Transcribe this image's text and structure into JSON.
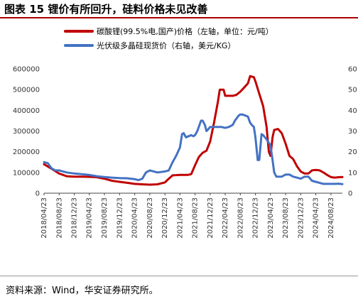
{
  "page": {
    "title": "图表 15  锂价有所回升，硅料价格未见改善",
    "source": "资料来源：Wind，华安证券研究所。"
  },
  "chart_data": {
    "type": "line",
    "x_labels": [
      "2018/04/23",
      "2018/08/23",
      "2018/12/23",
      "2019/04/23",
      "2019/08/23",
      "2019/12/23",
      "2020/04/23",
      "2020/08/23",
      "2020/12/23",
      "2021/04/23",
      "2021/08/23",
      "2021/12/23",
      "2022/04/23",
      "2022/08/23",
      "2022/12/23",
      "2023/04/23",
      "2023/08/23",
      "2023/12/23",
      "2024/04/23",
      "2024/08/23"
    ],
    "x_range": [
      "2018/04/23",
      "2024/11/23"
    ],
    "left_axis": {
      "min": 0,
      "max": 600000,
      "ticks": [
        0,
        100000,
        200000,
        300000,
        400000,
        500000,
        600000
      ]
    },
    "right_axis": {
      "min": 0,
      "max": 60,
      "ticks": [
        0,
        10,
        20,
        30,
        40,
        50,
        60
      ]
    },
    "grid": false,
    "legend_position": "top",
    "series": [
      {
        "name": "碳酸锂(99.5%电,国产)价格（左轴，单位：元/吨）",
        "axis": "left",
        "color": "#c00000",
        "points": [
          [
            "2018/04/23",
            140000
          ],
          [
            "2018/06/23",
            118000
          ],
          [
            "2018/08/23",
            95000
          ],
          [
            "2018/10/23",
            82000
          ],
          [
            "2018/12/23",
            80000
          ],
          [
            "2019/02/23",
            80000
          ],
          [
            "2019/04/23",
            79000
          ],
          [
            "2019/06/23",
            77000
          ],
          [
            "2019/08/23",
            70000
          ],
          [
            "2019/10/23",
            60000
          ],
          [
            "2019/12/23",
            55000
          ],
          [
            "2020/02/23",
            50000
          ],
          [
            "2020/04/23",
            45000
          ],
          [
            "2020/06/23",
            43000
          ],
          [
            "2020/08/23",
            41000
          ],
          [
            "2020/10/23",
            43000
          ],
          [
            "2020/12/23",
            52000
          ],
          [
            "2021/01/23",
            70000
          ],
          [
            "2021/02/23",
            86000
          ],
          [
            "2021/04/23",
            88000
          ],
          [
            "2021/06/23",
            88000
          ],
          [
            "2021/07/23",
            92000
          ],
          [
            "2021/08/23",
            135000
          ],
          [
            "2021/09/23",
            175000
          ],
          [
            "2021/10/23",
            195000
          ],
          [
            "2021/11/23",
            205000
          ],
          [
            "2021/12/23",
            250000
          ],
          [
            "2022/01/23",
            340000
          ],
          [
            "2022/02/23",
            440000
          ],
          [
            "2022/03/10",
            500000
          ],
          [
            "2022/04/10",
            500000
          ],
          [
            "2022/04/23",
            470000
          ],
          [
            "2022/06/23",
            470000
          ],
          [
            "2022/07/23",
            475000
          ],
          [
            "2022/08/23",
            490000
          ],
          [
            "2022/09/23",
            510000
          ],
          [
            "2022/10/23",
            530000
          ],
          [
            "2022/11/10",
            565000
          ],
          [
            "2022/12/10",
            560000
          ],
          [
            "2022/12/23",
            540000
          ],
          [
            "2023/01/23",
            480000
          ],
          [
            "2023/02/23",
            420000
          ],
          [
            "2023/03/23",
            320000
          ],
          [
            "2023/04/10",
            200000
          ],
          [
            "2023/04/23",
            180000
          ],
          [
            "2023/05/10",
            270000
          ],
          [
            "2023/05/23",
            305000
          ],
          [
            "2023/06/23",
            310000
          ],
          [
            "2023/07/23",
            290000
          ],
          [
            "2023/08/23",
            240000
          ],
          [
            "2023/09/23",
            180000
          ],
          [
            "2023/10/23",
            165000
          ],
          [
            "2023/11/23",
            130000
          ],
          [
            "2023/12/23",
            105000
          ],
          [
            "2024/01/23",
            95000
          ],
          [
            "2024/02/23",
            95000
          ],
          [
            "2024/03/23",
            110000
          ],
          [
            "2024/04/23",
            112000
          ],
          [
            "2024/05/23",
            110000
          ],
          [
            "2024/06/23",
            100000
          ],
          [
            "2024/07/23",
            88000
          ],
          [
            "2024/08/23",
            78000
          ],
          [
            "2024/09/23",
            75000
          ],
          [
            "2024/10/23",
            77000
          ],
          [
            "2024/11/23",
            78000
          ]
        ]
      },
      {
        "name": "光伏级多晶硅现货价（右轴，美元/KG）",
        "axis": "right",
        "color": "#4472c4",
        "points": [
          [
            "2018/04/23",
            15
          ],
          [
            "2018/05/23",
            14.5
          ],
          [
            "2018/06/23",
            12
          ],
          [
            "2018/07/23",
            11
          ],
          [
            "2018/08/23",
            11
          ],
          [
            "2018/10/23",
            10
          ],
          [
            "2018/12/23",
            9.5
          ],
          [
            "2019/02/23",
            9.2
          ],
          [
            "2019/04/23",
            8.8
          ],
          [
            "2019/06/23",
            8.2
          ],
          [
            "2019/08/23",
            7.8
          ],
          [
            "2019/10/23",
            7.5
          ],
          [
            "2019/12/23",
            7.3
          ],
          [
            "2020/02/23",
            7.2
          ],
          [
            "2020/04/23",
            6.8
          ],
          [
            "2020/05/23",
            6.3
          ],
          [
            "2020/06/23",
            7
          ],
          [
            "2020/07/23",
            10
          ],
          [
            "2020/08/23",
            11
          ],
          [
            "2020/10/23",
            10
          ],
          [
            "2020/12/23",
            10.5
          ],
          [
            "2021/01/23",
            11
          ],
          [
            "2021/02/23",
            15
          ],
          [
            "2021/03/23",
            18
          ],
          [
            "2021/04/23",
            22
          ],
          [
            "2021/05/10",
            28.5
          ],
          [
            "2021/05/23",
            29
          ],
          [
            "2021/06/10",
            27
          ],
          [
            "2021/07/23",
            28
          ],
          [
            "2021/08/10",
            27.5
          ],
          [
            "2021/08/23",
            28
          ],
          [
            "2021/09/10",
            30
          ],
          [
            "2021/10/10",
            35
          ],
          [
            "2021/10/23",
            35
          ],
          [
            "2021/11/10",
            33
          ],
          [
            "2021/11/23",
            30
          ],
          [
            "2021/12/10",
            31
          ],
          [
            "2021/12/23",
            32
          ],
          [
            "2022/02/23",
            32
          ],
          [
            "2022/03/23",
            32
          ],
          [
            "2022/04/23",
            31.5
          ],
          [
            "2022/05/23",
            32
          ],
          [
            "2022/06/23",
            33
          ],
          [
            "2022/07/10",
            35
          ],
          [
            "2022/08/10",
            37.5
          ],
          [
            "2022/08/23",
            38
          ],
          [
            "2022/09/10",
            38
          ],
          [
            "2022/10/23",
            37
          ],
          [
            "2022/11/10",
            34
          ],
          [
            "2022/11/23",
            33
          ],
          [
            "2022/12/10",
            32
          ],
          [
            "2022/12/23",
            27
          ],
          [
            "2023/01/10",
            16
          ],
          [
            "2023/01/23",
            16
          ],
          [
            "2023/02/10",
            28.5
          ],
          [
            "2023/02/23",
            28
          ],
          [
            "2023/03/23",
            26
          ],
          [
            "2023/04/23",
            23
          ],
          [
            "2023/05/10",
            16
          ],
          [
            "2023/05/23",
            10
          ],
          [
            "2023/06/10",
            8
          ],
          [
            "2023/06/23",
            8
          ],
          [
            "2023/07/23",
            8
          ],
          [
            "2023/08/23",
            9
          ],
          [
            "2023/09/23",
            9
          ],
          [
            "2023/10/23",
            8
          ],
          [
            "2023/11/23",
            7.5
          ],
          [
            "2023/12/23",
            7
          ],
          [
            "2024/01/23",
            8
          ],
          [
            "2024/02/23",
            8
          ],
          [
            "2024/03/23",
            6
          ],
          [
            "2024/04/23",
            5.5
          ],
          [
            "2024/05/23",
            5
          ],
          [
            "2024/06/23",
            4.5
          ],
          [
            "2024/07/23",
            4.5
          ],
          [
            "2024/08/23",
            4.5
          ],
          [
            "2024/09/23",
            4.5
          ],
          [
            "2024/10/23",
            4.6
          ],
          [
            "2024/11/23",
            4.4
          ]
        ]
      }
    ]
  }
}
